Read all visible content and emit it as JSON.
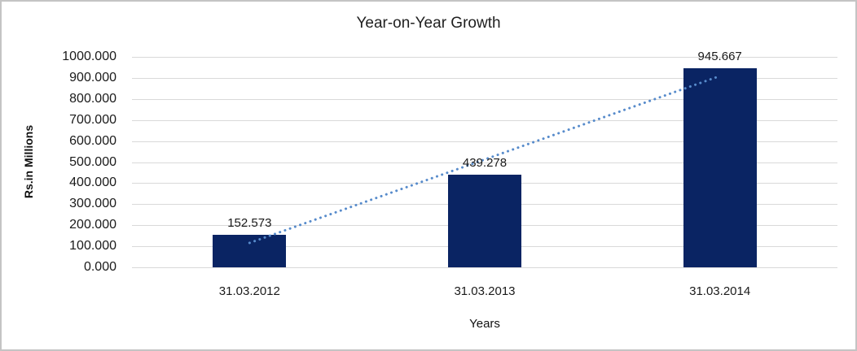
{
  "chart_data": {
    "type": "bar",
    "title": "Year-on-Year Growth",
    "categories": [
      "31.03.2012",
      "31.03.2013",
      "31.03.2014"
    ],
    "values": [
      152.573,
      439.278,
      945.667
    ],
    "data_labels": [
      "152.573",
      "439.278",
      "945.667"
    ],
    "xlabel": "Years",
    "ylabel": "Rs.in Millions",
    "ylim": [
      0,
      1000
    ],
    "y_tick_step": 100,
    "y_tick_decimals": 3,
    "y_tick_labels": [
      "0.000",
      "100.000",
      "200.000",
      "300.000",
      "400.000",
      "500.000",
      "600.000",
      "700.000",
      "800.000",
      "900.000",
      "1000.000"
    ],
    "grid": true,
    "legend": "none",
    "trendline": {
      "type": "linear",
      "style": "dotted"
    },
    "colors": {
      "bar": "#0a2463",
      "trendline": "#578bcb",
      "gridline": "#d9d9d9",
      "frame_border": "#c4c4c4",
      "text": "#1a1a1a"
    }
  }
}
